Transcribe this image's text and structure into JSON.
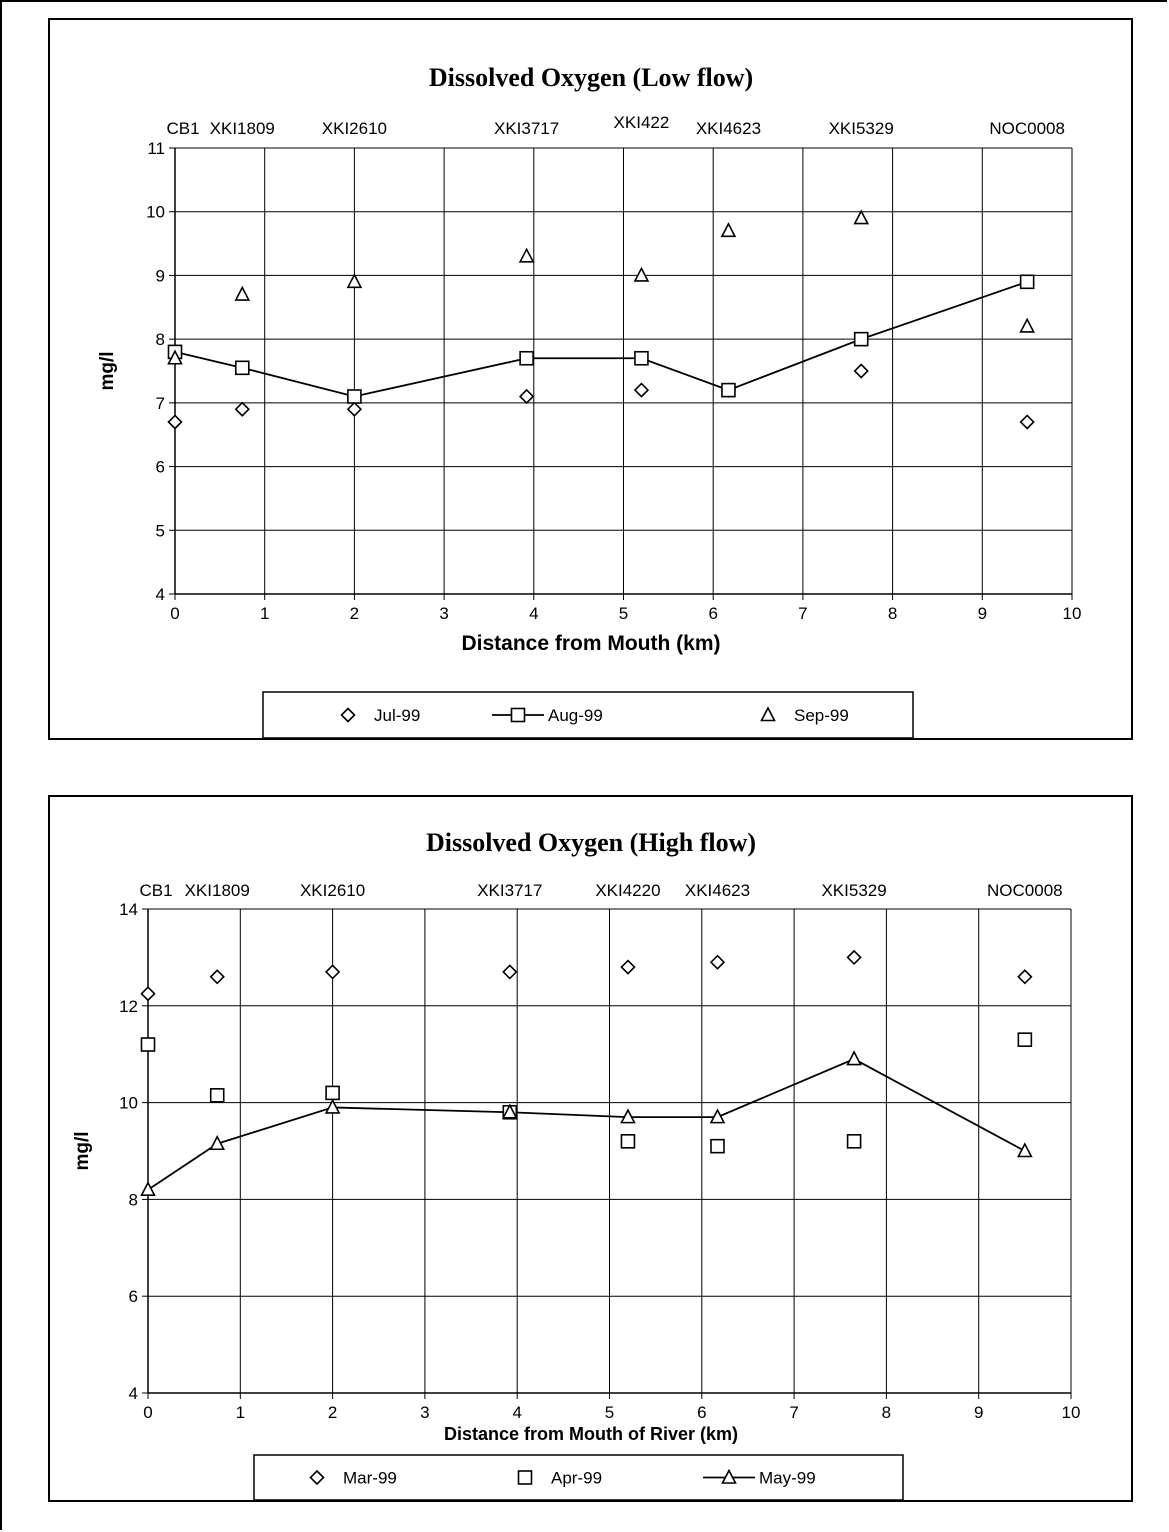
{
  "chart_data": [
    {
      "type": "scatter",
      "title": "Dissolved Oxygen (Low flow)",
      "xlabel": "Distance from Mouth (km)",
      "ylabel": "mg/l",
      "xlim": [
        0,
        10
      ],
      "ylim": [
        4,
        11
      ],
      "x_ticks": [
        0,
        1,
        2,
        3,
        4,
        5,
        6,
        7,
        8,
        9,
        10
      ],
      "y_ticks": [
        4,
        5,
        6,
        7,
        8,
        9,
        10,
        11
      ],
      "grid": true,
      "legend_position": "bottom",
      "stations": [
        {
          "label": "CB1",
          "x": 0
        },
        {
          "label": "XKI1809",
          "x": 0.75
        },
        {
          "label": "XKI2610",
          "x": 2.0
        },
        {
          "label": "XKI3717",
          "x": 3.92
        },
        {
          "label": "XKI422",
          "x": 5.2
        },
        {
          "label": "XKI4623",
          "x": 6.17
        },
        {
          "label": "XKI5329",
          "x": 7.65
        },
        {
          "label": "NOC0008",
          "x": 9.5
        }
      ],
      "series": [
        {
          "name": "Jul-99",
          "marker": "diamond",
          "line": false,
          "x": [
            0,
            0.75,
            2.0,
            3.92,
            5.2,
            6.17,
            7.65,
            9.5
          ],
          "y": [
            6.7,
            6.9,
            6.9,
            7.1,
            7.2,
            7.2,
            7.5,
            6.7
          ]
        },
        {
          "name": "Aug-99",
          "marker": "square",
          "line": true,
          "x": [
            0,
            0.75,
            2.0,
            3.92,
            5.2,
            6.17,
            7.65,
            9.5
          ],
          "y": [
            7.8,
            7.55,
            7.1,
            7.7,
            7.7,
            7.2,
            8.0,
            8.9
          ]
        },
        {
          "name": "Sep-99",
          "marker": "triangle",
          "line": false,
          "x": [
            0,
            0.75,
            2.0,
            3.92,
            5.2,
            6.17,
            7.65,
            9.5
          ],
          "y": [
            7.7,
            8.7,
            8.9,
            9.3,
            9.0,
            9.7,
            9.9,
            8.2
          ]
        }
      ]
    },
    {
      "type": "scatter",
      "title": "Dissolved Oxygen (High flow)",
      "xlabel": "Distance from Mouth of River (km)",
      "ylabel": "mg/l",
      "xlim": [
        0,
        10
      ],
      "ylim": [
        4,
        14
      ],
      "x_ticks": [
        0,
        1,
        2,
        3,
        4,
        5,
        6,
        7,
        8,
        9,
        10
      ],
      "y_ticks": [
        4,
        6,
        8,
        10,
        12,
        14
      ],
      "grid": true,
      "legend_position": "bottom",
      "stations": [
        {
          "label": "CB1",
          "x": 0
        },
        {
          "label": "XKI1809",
          "x": 0.75
        },
        {
          "label": "XKI2610",
          "x": 2.0
        },
        {
          "label": "XKI3717",
          "x": 3.92
        },
        {
          "label": "XKI4220",
          "x": 5.2
        },
        {
          "label": "XKI4623",
          "x": 6.17
        },
        {
          "label": "XKI5329",
          "x": 7.65
        },
        {
          "label": "NOC0008",
          "x": 9.5
        }
      ],
      "series": [
        {
          "name": "Mar-99",
          "marker": "diamond",
          "line": false,
          "x": [
            0,
            0.75,
            2.0,
            3.92,
            5.2,
            6.17,
            7.65,
            9.5
          ],
          "y": [
            12.25,
            12.6,
            12.7,
            12.7,
            12.8,
            12.9,
            13.0,
            12.6
          ]
        },
        {
          "name": "Apr-99",
          "marker": "square",
          "line": false,
          "x": [
            0,
            0.75,
            2.0,
            3.92,
            5.2,
            6.17,
            7.65,
            9.5
          ],
          "y": [
            11.2,
            10.15,
            10.2,
            9.8,
            9.2,
            9.1,
            9.2,
            11.3
          ]
        },
        {
          "name": "May-99",
          "marker": "triangle",
          "line": true,
          "x": [
            0,
            0.75,
            2.0,
            3.92,
            5.2,
            6.17,
            7.65,
            9.5
          ],
          "y": [
            8.2,
            9.15,
            9.9,
            9.8,
            9.7,
            9.7,
            10.9,
            9.0
          ]
        }
      ]
    }
  ]
}
